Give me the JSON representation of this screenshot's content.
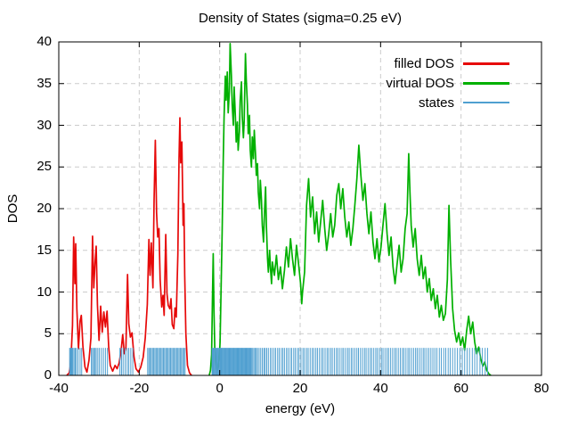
{
  "chart_data": {
    "type": "line",
    "title": "Density of States (sigma=0.25 eV)",
    "xlabel": "energy (eV)",
    "ylabel": "DOS",
    "xlim": [
      -40,
      80
    ],
    "ylim": [
      0,
      40
    ],
    "xticks": [
      -40,
      -20,
      0,
      20,
      40,
      60,
      80
    ],
    "yticks": [
      0,
      5,
      10,
      15,
      20,
      25,
      30,
      35,
      40
    ],
    "grid": true,
    "grid_color": "#cccccc",
    "border_color": "#000000",
    "background": "#ffffff",
    "legend_position": "top-right-inside",
    "series": [
      {
        "name": "filled DOS",
        "type": "line",
        "color": "#e60909",
        "points": [
          [
            -38,
            0
          ],
          [
            -37.4,
            0.3
          ],
          [
            -37,
            1.5
          ],
          [
            -36.6,
            6
          ],
          [
            -36.3,
            16.6
          ],
          [
            -36,
            11
          ],
          [
            -35.8,
            15.8
          ],
          [
            -35.5,
            8
          ],
          [
            -35.1,
            3.2
          ],
          [
            -34.7,
            6.5
          ],
          [
            -34.4,
            7.2
          ],
          [
            -34,
            3.5
          ],
          [
            -33.5,
            1
          ],
          [
            -33,
            0.4
          ],
          [
            -32.5,
            1.8
          ],
          [
            -32,
            4.5
          ],
          [
            -31.6,
            16.7
          ],
          [
            -31.3,
            10.5
          ],
          [
            -31,
            13.5
          ],
          [
            -30.7,
            15.5
          ],
          [
            -30.4,
            8.5
          ],
          [
            -30,
            4.2
          ],
          [
            -29.6,
            8.3
          ],
          [
            -29.2,
            5.2
          ],
          [
            -28.8,
            7.6
          ],
          [
            -28.4,
            5.8
          ],
          [
            -28,
            7.7
          ],
          [
            -27.6,
            3.5
          ],
          [
            -27.2,
            1.2
          ],
          [
            -26.6,
            0.5
          ],
          [
            -26,
            1.2
          ],
          [
            -25.5,
            0.8
          ],
          [
            -25,
            1.5
          ],
          [
            -24.5,
            3
          ],
          [
            -24.1,
            4.9
          ],
          [
            -23.7,
            2.6
          ],
          [
            -23.3,
            3.4
          ],
          [
            -22.9,
            12.1
          ],
          [
            -22.6,
            6.2
          ],
          [
            -22.2,
            4.6
          ],
          [
            -21.8,
            5.1
          ],
          [
            -21.3,
            2.2
          ],
          [
            -20.8,
            0.8
          ],
          [
            -20.2,
            0.4
          ],
          [
            -19.6,
            1
          ],
          [
            -19,
            2.2
          ],
          [
            -18.5,
            4.5
          ],
          [
            -18,
            8.5
          ],
          [
            -17.6,
            16.3
          ],
          [
            -17.3,
            12
          ],
          [
            -17,
            15.9
          ],
          [
            -16.6,
            10.5
          ],
          [
            -16.3,
            21
          ],
          [
            -16,
            28.2
          ],
          [
            -15.7,
            19.5
          ],
          [
            -15.4,
            16.6
          ],
          [
            -15.1,
            17.6
          ],
          [
            -14.8,
            11.5
          ],
          [
            -14.4,
            8.2
          ],
          [
            -14.1,
            9.6
          ],
          [
            -13.8,
            7.2
          ],
          [
            -13.4,
            16.9
          ],
          [
            -13.1,
            9.8
          ],
          [
            -12.8,
            8.4
          ],
          [
            -12.4,
            8
          ],
          [
            -12.1,
            9.2
          ],
          [
            -11.8,
            6.1
          ],
          [
            -11.4,
            5.6
          ],
          [
            -11.1,
            8.1
          ],
          [
            -10.8,
            7
          ],
          [
            -10.4,
            14.5
          ],
          [
            -10.1,
            26
          ],
          [
            -9.9,
            30.9
          ],
          [
            -9.7,
            25.5
          ],
          [
            -9.4,
            28
          ],
          [
            -9.1,
            18
          ],
          [
            -8.9,
            20.6
          ],
          [
            -8.7,
            12
          ],
          [
            -8.4,
            5
          ],
          [
            -8,
            1.2
          ],
          [
            -7.5,
            0.3
          ],
          [
            -7,
            0
          ]
        ]
      },
      {
        "name": "virtual DOS",
        "type": "line",
        "color": "#00b000",
        "points": [
          [
            -2.6,
            0
          ],
          [
            -2.3,
            0.6
          ],
          [
            -2,
            2.5
          ],
          [
            -1.8,
            9
          ],
          [
            -1.6,
            14.6
          ],
          [
            -1.4,
            7.5
          ],
          [
            -1.2,
            3
          ],
          [
            -1,
            1.2
          ],
          [
            -0.7,
            0.5
          ],
          [
            -0.4,
            0.8
          ],
          [
            -0.1,
            2
          ],
          [
            0.1,
            4
          ],
          [
            0.3,
            9
          ],
          [
            0.6,
            17
          ],
          [
            0.9,
            26
          ],
          [
            1.1,
            31
          ],
          [
            1.4,
            35.9
          ],
          [
            1.6,
            33
          ],
          [
            1.9,
            36.4
          ],
          [
            2.1,
            31.5
          ],
          [
            2.4,
            34
          ],
          [
            2.6,
            39.8
          ],
          [
            2.9,
            36
          ],
          [
            3.1,
            32.5
          ],
          [
            3.4,
            30
          ],
          [
            3.6,
            34.6
          ],
          [
            3.9,
            31
          ],
          [
            4.1,
            28
          ],
          [
            4.4,
            30.4
          ],
          [
            4.6,
            27
          ],
          [
            4.9,
            29.2
          ],
          [
            5.1,
            33
          ],
          [
            5.4,
            35.2
          ],
          [
            5.6,
            31
          ],
          [
            5.9,
            28.5
          ],
          [
            6.1,
            30.6
          ],
          [
            6.4,
            38.6
          ],
          [
            6.6,
            35.5
          ],
          [
            6.9,
            32.5
          ],
          [
            7.1,
            29
          ],
          [
            7.4,
            31.2
          ],
          [
            7.6,
            27
          ],
          [
            7.9,
            25
          ],
          [
            8.1,
            28.6
          ],
          [
            8.4,
            26
          ],
          [
            8.6,
            29.4
          ],
          [
            8.9,
            26.5
          ],
          [
            9.1,
            24
          ],
          [
            9.4,
            25.4
          ],
          [
            9.6,
            22
          ],
          [
            9.9,
            20
          ],
          [
            10.1,
            23.4
          ],
          [
            10.4,
            21
          ],
          [
            10.6,
            18
          ],
          [
            10.9,
            16
          ],
          [
            11.1,
            19
          ],
          [
            11.4,
            22.6
          ],
          [
            11.6,
            18
          ],
          [
            11.9,
            14
          ],
          [
            12.1,
            12.4
          ],
          [
            12.4,
            15
          ],
          [
            12.6,
            13
          ],
          [
            12.9,
            11
          ],
          [
            13.1,
            13.6
          ],
          [
            13.6,
            12
          ],
          [
            14.1,
            14.4
          ],
          [
            14.6,
            11.5
          ],
          [
            15.1,
            13
          ],
          [
            15.6,
            10.4
          ],
          [
            16.1,
            12.6
          ],
          [
            16.6,
            15.4
          ],
          [
            17.1,
            13
          ],
          [
            17.6,
            16.4
          ],
          [
            18.1,
            14
          ],
          [
            18.6,
            12
          ],
          [
            19.1,
            15.6
          ],
          [
            19.6,
            13.4
          ],
          [
            20.1,
            11
          ],
          [
            20.4,
            8.6
          ],
          [
            20.6,
            10
          ],
          [
            21.1,
            12.4
          ],
          [
            21.6,
            20.4
          ],
          [
            22.1,
            23.6
          ],
          [
            22.6,
            19
          ],
          [
            23.1,
            21.4
          ],
          [
            23.6,
            17
          ],
          [
            24.1,
            19.6
          ],
          [
            24.6,
            16
          ],
          [
            25.1,
            18.4
          ],
          [
            25.6,
            21
          ],
          [
            26.1,
            17.6
          ],
          [
            26.6,
            15
          ],
          [
            27.1,
            17
          ],
          [
            27.6,
            19.4
          ],
          [
            28.1,
            16.6
          ],
          [
            28.6,
            18
          ],
          [
            29.1,
            21.6
          ],
          [
            29.6,
            23
          ],
          [
            30.1,
            20
          ],
          [
            30.6,
            22.4
          ],
          [
            31.1,
            19
          ],
          [
            31.6,
            16.6
          ],
          [
            32.1,
            18.4
          ],
          [
            32.6,
            15.6
          ],
          [
            33.1,
            17.6
          ],
          [
            33.6,
            20.4
          ],
          [
            34.1,
            23.6
          ],
          [
            34.6,
            27.6
          ],
          [
            35.1,
            24
          ],
          [
            35.6,
            21
          ],
          [
            36.1,
            23
          ],
          [
            36.6,
            19.4
          ],
          [
            37.1,
            17
          ],
          [
            37.6,
            19.6
          ],
          [
            38.1,
            16
          ],
          [
            38.6,
            14
          ],
          [
            39.1,
            16.4
          ],
          [
            39.6,
            13.6
          ],
          [
            40.1,
            15.4
          ],
          [
            40.6,
            18
          ],
          [
            41.1,
            20.6
          ],
          [
            41.6,
            17
          ],
          [
            42.1,
            14.4
          ],
          [
            42.6,
            16.6
          ],
          [
            43.1,
            13
          ],
          [
            43.6,
            11
          ],
          [
            44.1,
            13.4
          ],
          [
            44.6,
            15.6
          ],
          [
            45.1,
            12.4
          ],
          [
            45.6,
            14
          ],
          [
            46.1,
            17.6
          ],
          [
            46.6,
            19.4
          ],
          [
            47,
            26.6
          ],
          [
            47.3,
            22
          ],
          [
            47.6,
            18
          ],
          [
            48.1,
            15.4
          ],
          [
            48.6,
            17.6
          ],
          [
            49.1,
            14
          ],
          [
            49.6,
            12
          ],
          [
            50.1,
            14.4
          ],
          [
            50.6,
            11.6
          ],
          [
            51.1,
            13
          ],
          [
            51.6,
            10
          ],
          [
            52.1,
            11.6
          ],
          [
            52.6,
            9
          ],
          [
            53.1,
            10.4
          ],
          [
            53.6,
            8
          ],
          [
            54.1,
            9.6
          ],
          [
            54.6,
            7
          ],
          [
            55.1,
            8.4
          ],
          [
            55.6,
            6.6
          ],
          [
            56.1,
            7.4
          ],
          [
            56.6,
            11.5
          ],
          [
            57,
            20.4
          ],
          [
            57.4,
            14
          ],
          [
            57.9,
            8
          ],
          [
            58.4,
            5.4
          ],
          [
            58.9,
            4
          ],
          [
            59.4,
            5.1
          ],
          [
            59.9,
            3.6
          ],
          [
            60.4,
            4.6
          ],
          [
            60.9,
            3
          ],
          [
            61.4,
            5.4
          ],
          [
            61.9,
            7.1
          ],
          [
            62.4,
            5
          ],
          [
            62.9,
            6.4
          ],
          [
            63.4,
            4
          ],
          [
            63.9,
            2.6
          ],
          [
            64.4,
            3.4
          ],
          [
            64.9,
            2
          ],
          [
            65.4,
            1.1
          ],
          [
            65.9,
            1.6
          ],
          [
            66.4,
            0.6
          ],
          [
            66.9,
            0.2
          ],
          [
            67.4,
            0
          ]
        ]
      },
      {
        "name": "states",
        "type": "impulses",
        "color": "#4f9fd0",
        "height": 3.3,
        "x": [
          -37.3,
          -37.1,
          -36.9,
          -36.7,
          -36.5,
          -36.2,
          -35.9,
          -35.6,
          -35.2,
          -34.7,
          -34.3,
          -31.9,
          -31.6,
          -31.3,
          -31,
          -30.7,
          -30.3,
          -29.9,
          -29.4,
          -28.9,
          -28.4,
          -27.9,
          -24.8,
          -24.4,
          -24,
          -23.5,
          -23,
          -22.6,
          -22.1,
          -21.6,
          -17.9,
          -17.6,
          -17.3,
          -17,
          -16.7,
          -16.4,
          -16.1,
          -15.8,
          -15.5,
          -15.2,
          -14.9,
          -14.6,
          -14.3,
          -14,
          -13.7,
          -13.4,
          -13.1,
          -12.8,
          -12.5,
          -12.2,
          -11.9,
          -11.6,
          -11.3,
          -11,
          -10.7,
          -10.4,
          -10.1,
          -9.8,
          -9.5,
          -9.2,
          -8.9,
          -8.6,
          -1.9,
          -1.7,
          -1.5,
          -1.3,
          -1.1,
          -0.9,
          -0.7,
          -0.5,
          -0.3,
          -0.1,
          0.1,
          0.3,
          0.5,
          0.7,
          0.9,
          1.1,
          1.3,
          1.5,
          1.7,
          1.9,
          2.1,
          2.3,
          2.5,
          2.7,
          2.9,
          3.1,
          3.3,
          3.5,
          3.7,
          3.9,
          4.1,
          4.3,
          4.5,
          4.7,
          4.9,
          5.1,
          5.3,
          5.5,
          5.7,
          5.9,
          6.1,
          6.3,
          6.5,
          6.7,
          6.9,
          7.1,
          7.3,
          7.5,
          7.7,
          7.9,
          8.2,
          8.5,
          8.8,
          9.1,
          9.4,
          9.8,
          10.2,
          10.6,
          11,
          11.3,
          11.7,
          12.1,
          12.6,
          13,
          13.5,
          13.9,
          14.4,
          14.8,
          15.3,
          15.7,
          16.1,
          16.6,
          17,
          17.5,
          17.9,
          18.4,
          18.8,
          19.3,
          19.7,
          20.2,
          20.7,
          21.1,
          21.6,
          22,
          22.5,
          23,
          23.4,
          23.9,
          24.3,
          24.8,
          25.3,
          25.7,
          26.2,
          26.7,
          27.1,
          27.6,
          28,
          28.5,
          29,
          29.4,
          29.9,
          30.4,
          30.8,
          31.3,
          31.8,
          32.2,
          32.7,
          33.1,
          33.6,
          34.1,
          34.5,
          35,
          35.5,
          36,
          36.4,
          36.9,
          37.4,
          37.8,
          38.3,
          38.8,
          39.2,
          39.7,
          40.2,
          40.6,
          41.1,
          41.6,
          42,
          42.5,
          43,
          43.5,
          43.9,
          44.4,
          44.9,
          45.4,
          45.8,
          46.3,
          46.8,
          47.2,
          47.7,
          48.2,
          48.7,
          49.1,
          49.6,
          50.1,
          50.6,
          51,
          51.5,
          52,
          52.5,
          53,
          53.5,
          54,
          54.6,
          55.1,
          55.7,
          56.2,
          56.8,
          57.3,
          57.9,
          58.5,
          59.1,
          59.7,
          60.3,
          60.9,
          61.5,
          62.1,
          62.8,
          63.4,
          64,
          64.7,
          65.3,
          66,
          66.6
        ]
      }
    ]
  }
}
